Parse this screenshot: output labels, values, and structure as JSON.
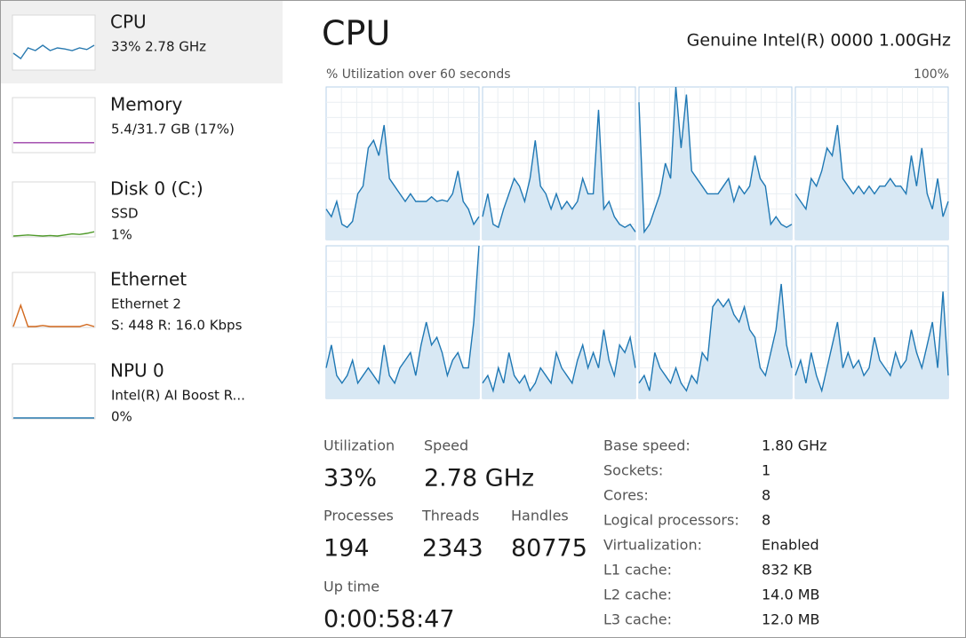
{
  "sidebar": [
    {
      "name": "CPU",
      "lines": [
        "33% 2.78 GHz"
      ],
      "color": "#2a7ab0",
      "graph": [
        30,
        20,
        40,
        35,
        45,
        35,
        40,
        38,
        35,
        40,
        37,
        45
      ]
    },
    {
      "name": "Memory",
      "lines": [
        "5.4/31.7 GB (17%)"
      ],
      "color": "#9b3fa8",
      "graph": [
        17,
        17,
        17,
        17,
        17,
        17,
        17,
        17,
        17,
        17,
        17,
        17
      ]
    },
    {
      "name": "Disk 0 (C:)",
      "lines": [
        "SSD",
        "1%"
      ],
      "color": "#4f9a2a",
      "graph": [
        0,
        1,
        2,
        1,
        0,
        1,
        0,
        2,
        4,
        3,
        5,
        8
      ]
    },
    {
      "name": "Ethernet",
      "lines": [
        "Ethernet 2",
        "S: 448 R: 16.0 Kbps"
      ],
      "color": "#d2691e",
      "graph": [
        0,
        40,
        0,
        0,
        2,
        0,
        0,
        0,
        0,
        0,
        4,
        0
      ]
    },
    {
      "name": "NPU 0",
      "lines": [
        "Intel(R) AI Boost  R...",
        "0%"
      ],
      "color": "#2a7ab0",
      "graph": [
        0,
        0,
        0,
        0,
        0,
        0,
        0,
        0,
        0,
        0,
        0,
        0
      ]
    }
  ],
  "main": {
    "title": "CPU",
    "processor": "Genuine Intel(R) 0000 1.00GHz",
    "graph_label": "% Utilization over 60 seconds",
    "graph_max": {
      "value": 100,
      "label": "100%"
    },
    "cores": [
      [
        20,
        15,
        25,
        10,
        8,
        12,
        30,
        35,
        60,
        65,
        55,
        75,
        40,
        35,
        30,
        25,
        30,
        25,
        25,
        25,
        28,
        25,
        26,
        25,
        30,
        45,
        25,
        20,
        10,
        15
      ],
      [
        15,
        30,
        10,
        8,
        20,
        30,
        40,
        35,
        25,
        40,
        65,
        35,
        30,
        20,
        30,
        20,
        25,
        20,
        25,
        40,
        30,
        30,
        85,
        20,
        25,
        15,
        10,
        8,
        10,
        5
      ],
      [
        90,
        5,
        10,
        20,
        30,
        50,
        40,
        100,
        60,
        95,
        45,
        40,
        35,
        30,
        30,
        30,
        35,
        40,
        25,
        35,
        30,
        35,
        55,
        40,
        35,
        10,
        15,
        10,
        8,
        10
      ],
      [
        30,
        25,
        20,
        40,
        35,
        45,
        60,
        55,
        75,
        40,
        35,
        30,
        35,
        30,
        35,
        30,
        35,
        35,
        40,
        35,
        35,
        30,
        55,
        35,
        60,
        30,
        20,
        40,
        15,
        25
      ],
      [
        20,
        35,
        15,
        10,
        15,
        25,
        10,
        15,
        20,
        15,
        10,
        35,
        15,
        10,
        20,
        25,
        30,
        15,
        35,
        50,
        35,
        40,
        30,
        15,
        25,
        30,
        20,
        20,
        50,
        100
      ],
      [
        10,
        15,
        5,
        20,
        10,
        30,
        15,
        10,
        15,
        5,
        10,
        20,
        15,
        10,
        30,
        20,
        15,
        10,
        25,
        35,
        20,
        30,
        20,
        45,
        25,
        15,
        35,
        30,
        40,
        20
      ],
      [
        10,
        15,
        5,
        30,
        20,
        15,
        10,
        20,
        10,
        5,
        15,
        10,
        30,
        25,
        60,
        65,
        60,
        65,
        55,
        50,
        60,
        45,
        40,
        20,
        15,
        30,
        45,
        75,
        35,
        20
      ],
      [
        15,
        25,
        10,
        30,
        15,
        5,
        20,
        35,
        50,
        20,
        30,
        20,
        25,
        15,
        20,
        40,
        25,
        20,
        15,
        30,
        20,
        25,
        45,
        30,
        20,
        35,
        50,
        20,
        70,
        15
      ]
    ]
  },
  "stats": [
    {
      "label": "Utilization",
      "value": "33%"
    },
    {
      "label": "Speed",
      "value": "2.78 GHz"
    },
    {
      "label": "Processes",
      "value": "194"
    },
    {
      "label": "Threads",
      "value": "2343"
    },
    {
      "label": "Handles",
      "value": "80775"
    },
    {
      "label": "Up time",
      "value": "0:00:58:47"
    }
  ],
  "specs": [
    {
      "label": "Base speed:",
      "value": "1.80 GHz"
    },
    {
      "label": "Sockets:",
      "value": "1"
    },
    {
      "label": "Cores:",
      "value": "8"
    },
    {
      "label": "Logical processors:",
      "value": "8"
    },
    {
      "label": "Virtualization:",
      "value": "Enabled"
    },
    {
      "label": "L1 cache:",
      "value": "832 KB"
    },
    {
      "label": "L2 cache:",
      "value": "14.0 MB"
    },
    {
      "label": "L3 cache:",
      "value": "12.0 MB"
    }
  ]
}
